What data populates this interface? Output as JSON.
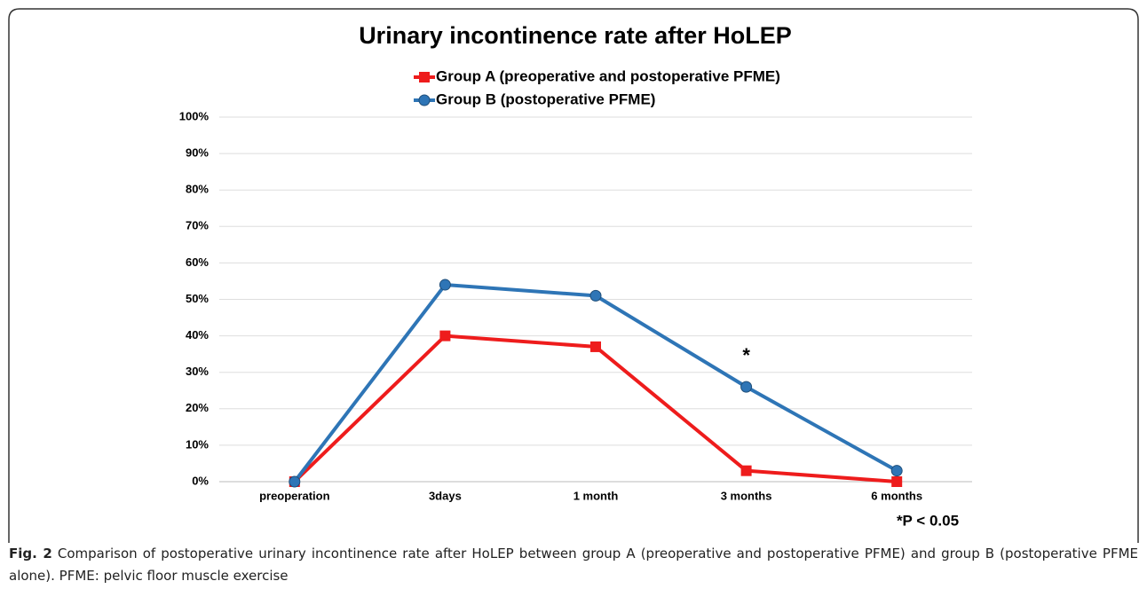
{
  "chart_data": {
    "type": "line",
    "title": "Urinary incontinence rate after HoLEP",
    "categories": [
      "preoperation",
      "3days",
      "1 month",
      "3 months",
      "6 months"
    ],
    "series": [
      {
        "name": "Group A (preoperative and postoperative PFME)",
        "color": "#ee1c1c",
        "marker": "square",
        "values": [
          0,
          40,
          37,
          3,
          0
        ]
      },
      {
        "name": "Group B (postoperative PFME)",
        "color": "#2e75b6",
        "marker": "circle",
        "values": [
          0,
          54,
          51,
          26,
          3
        ]
      }
    ],
    "ylim": [
      0,
      100
    ],
    "yticks": [
      {
        "value": 0,
        "label": "0%"
      },
      {
        "value": 10,
        "label": "10%"
      },
      {
        "value": 20,
        "label": "20%"
      },
      {
        "value": 30,
        "label": "30%"
      },
      {
        "value": 40,
        "label": "40%"
      },
      {
        "value": 50,
        "label": "50%"
      },
      {
        "value": 60,
        "label": "60%"
      },
      {
        "value": 70,
        "label": "70%"
      },
      {
        "value": 80,
        "label": "80%"
      },
      {
        "value": 90,
        "label": "90%"
      },
      {
        "value": 100,
        "label": "100%"
      }
    ],
    "grid": true,
    "legend": "top",
    "annotations": [
      "*",
      "*P < 0.05"
    ]
  },
  "caption": {
    "label": "Fig. 2",
    "text": "Comparison of postoperative urinary incontinence rate after HoLEP between group A (preoperative and postoperative PFME) and group B (postoperative PFME alone). PFME: pelvic floor muscle exercise"
  }
}
